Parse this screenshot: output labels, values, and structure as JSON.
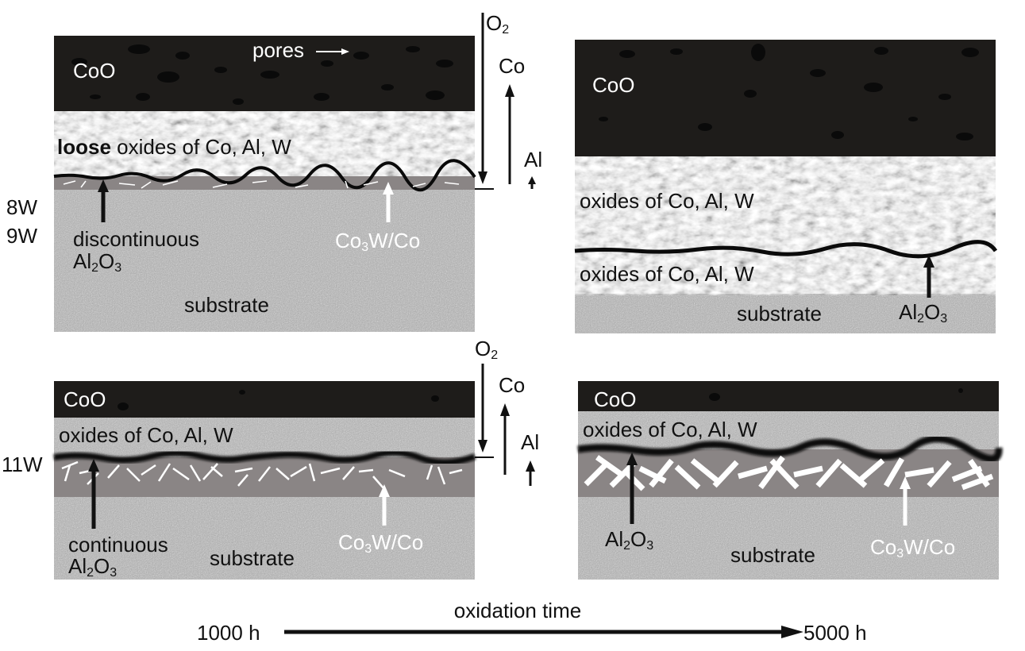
{
  "colors": {
    "coo": "#1e1c1a",
    "mixed_oxide": "#9a9a9a",
    "substrate": "#a3a3a3",
    "interlayer": "#8a8585",
    "scale_line": "#0a0a0a",
    "needles": "#ffffff"
  },
  "side_labels": {
    "w8": "8W",
    "w9": "9W",
    "w11": "11W"
  },
  "panels": {
    "tl": {
      "coo": "CoO",
      "pores": "pores",
      "oxides_bold": "loose",
      "oxides_rest": " oxides of Co, Al, W",
      "al2o3_line1": "discontinuous",
      "al2o3_line2_a": "Al",
      "al2o3_line2_b": "2",
      "al2o3_line2_c": "O",
      "al2o3_line2_d": "3",
      "co3w_a": "Co",
      "co3w_b": "3",
      "co3w_c": "W/Co",
      "substrate": "substrate"
    },
    "tr": {
      "coo": "CoO",
      "oxides_upper": "oxides of Co, Al, W",
      "oxides_lower": "oxides of Co, Al, W",
      "al2o3_a": "Al",
      "al2o3_b": "2",
      "al2o3_c": "O",
      "al2o3_d": "3",
      "substrate": "substrate"
    },
    "bl": {
      "coo": "CoO",
      "oxides": "oxides of Co, Al, W",
      "al2o3_line1": "continuous",
      "al2o3_line2_a": "Al",
      "al2o3_line2_b": "2",
      "al2o3_line2_c": "O",
      "al2o3_line2_d": "3",
      "co3w_a": "Co",
      "co3w_b": "3",
      "co3w_c": "W/Co",
      "substrate": "substrate"
    },
    "br": {
      "coo": "CoO",
      "oxides": "oxides of Co, Al, W",
      "al2o3_a": "Al",
      "al2o3_b": "2",
      "al2o3_c": "O",
      "al2o3_d": "3",
      "co3w_a": "Co",
      "co3w_b": "3",
      "co3w_c": "W/Co",
      "substrate": "substrate"
    }
  },
  "flux_top": {
    "o2_a": "O",
    "o2_b": "2",
    "co": "Co",
    "al": "Al"
  },
  "flux_bottom": {
    "o2_a": "O",
    "o2_b": "2",
    "co": "Co",
    "al": "Al"
  },
  "time_axis": {
    "label": "oxidation time",
    "start": "1000 h",
    "end": "5000 h"
  }
}
